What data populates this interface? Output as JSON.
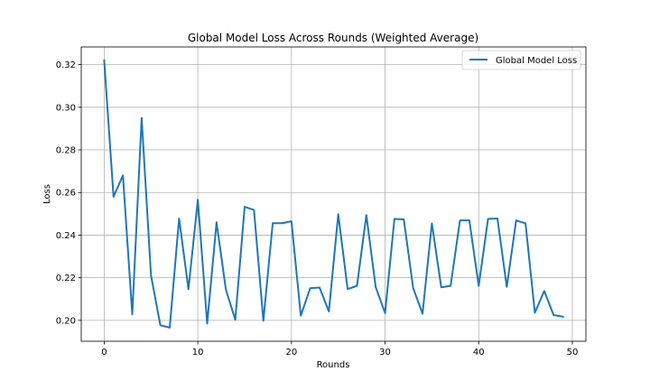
{
  "chart_data": {
    "type": "line",
    "title": "Global Model Loss Across Rounds (Weighted Average)",
    "xlabel": "Rounds",
    "ylabel": "Loss",
    "xlim": [
      -2.45,
      51.45
    ],
    "ylim": [
      0.1902,
      0.3283
    ],
    "xticks": [
      0,
      10,
      20,
      30,
      40,
      50
    ],
    "yticks": [
      0.2,
      0.22,
      0.24,
      0.26,
      0.28,
      0.3,
      0.32
    ],
    "ytick_labels": [
      "0.20",
      "0.22",
      "0.24",
      "0.26",
      "0.28",
      "0.30",
      "0.32"
    ],
    "grid": true,
    "legend_position": "top-right",
    "series": [
      {
        "name": "Global Model Loss",
        "color": "#1f77b4",
        "x": [
          0,
          1,
          2,
          3,
          4,
          5,
          6,
          7,
          8,
          9,
          10,
          11,
          12,
          13,
          14,
          15,
          16,
          17,
          18,
          19,
          20,
          21,
          22,
          23,
          24,
          25,
          26,
          27,
          28,
          29,
          30,
          31,
          32,
          33,
          34,
          35,
          36,
          37,
          38,
          39,
          40,
          41,
          42,
          43,
          44,
          45,
          46,
          47,
          48,
          49
        ],
        "values": [
          0.322,
          0.258,
          0.268,
          0.2028,
          0.295,
          0.2211,
          0.1977,
          0.1966,
          0.2478,
          0.2146,
          0.2566,
          0.1985,
          0.246,
          0.2144,
          0.2003,
          0.2533,
          0.2518,
          0.1998,
          0.2456,
          0.2456,
          0.2465,
          0.2022,
          0.2151,
          0.2154,
          0.2042,
          0.2498,
          0.2147,
          0.2162,
          0.2494,
          0.2156,
          0.2034,
          0.2476,
          0.2474,
          0.2152,
          0.2031,
          0.2455,
          0.2155,
          0.2162,
          0.2469,
          0.2469,
          0.2162,
          0.2476,
          0.2478,
          0.2157,
          0.2469,
          0.2455,
          0.2036,
          0.2138,
          0.2025,
          0.2017
        ]
      }
    ]
  }
}
